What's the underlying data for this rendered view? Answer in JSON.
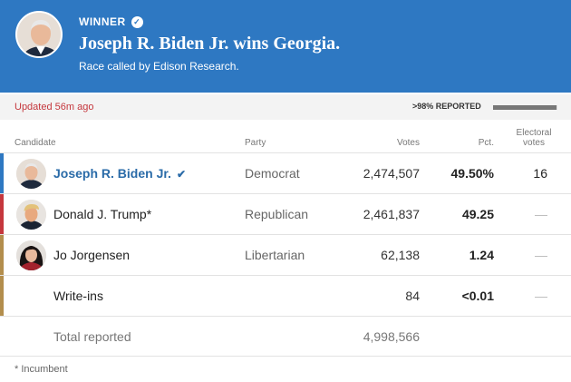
{
  "banner": {
    "winner_label": "WINNER",
    "headline": "Joseph R. Biden Jr. wins Georgia.",
    "subline": "Race called by Edison Research."
  },
  "status": {
    "updated": "Updated 56m ago",
    "reported": ">98% REPORTED",
    "reported_fraction": 0.98
  },
  "columns": {
    "candidate": "Candidate",
    "party": "Party",
    "votes": "Votes",
    "pct": "Pct.",
    "electoral_line1": "Electoral",
    "electoral_line2": "votes"
  },
  "candidates": [
    {
      "name": "Joseph R. Biden Jr.",
      "party": "Democrat",
      "votes": "2,474,507",
      "pct": "49.50%",
      "electoral": "16",
      "color": "#2e78c2"
    },
    {
      "name": "Donald J. Trump*",
      "party": "Republican",
      "votes": "2,461,837",
      "pct": "49.25",
      "electoral": "—",
      "color": "#c5373d"
    },
    {
      "name": "Jo Jorgensen",
      "party": "Libertarian",
      "votes": "62,138",
      "pct": "1.24",
      "electoral": "—",
      "color": "#b38e4d"
    },
    {
      "name": "Write-ins",
      "party": "",
      "votes": "84",
      "pct": "<0.01",
      "electoral": "—",
      "color": "#b38e4d"
    }
  ],
  "total": {
    "label": "Total reported",
    "votes": "4,998,566"
  },
  "footnote": "* Incumbent"
}
